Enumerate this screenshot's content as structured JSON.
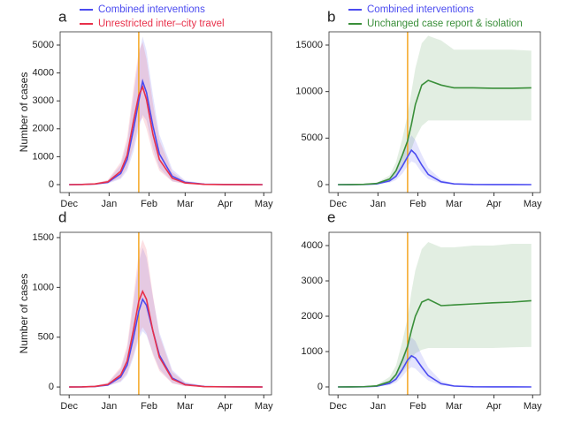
{
  "chart_data": [
    {
      "type": "line",
      "panel_label": "a",
      "ylabel": "Number of cases",
      "legend": true,
      "vline": 54,
      "vline_color": "#f5a623",
      "x": [
        0,
        10,
        20,
        30,
        40,
        45,
        50,
        54,
        57,
        60,
        65,
        70,
        80,
        90,
        105,
        120,
        135,
        150
      ],
      "xlim": [
        -7,
        157
      ],
      "xticks": [
        {
          "value": 0,
          "label": "Dec"
        },
        {
          "value": 31,
          "label": "Jan"
        },
        {
          "value": 62,
          "label": "Feb"
        },
        {
          "value": 90,
          "label": "Mar"
        },
        {
          "value": 121,
          "label": "Apr"
        },
        {
          "value": 151,
          "label": "May"
        }
      ],
      "ylim": [
        -285,
        5475
      ],
      "yticks": [
        0,
        1000,
        2000,
        3000,
        4000,
        5000
      ],
      "series": [
        {
          "name": "Combined interventions",
          "color": "#4b4bf0",
          "values": [
            0,
            5,
            20,
            80,
            400,
            900,
            2000,
            3000,
            3700,
            3300,
            2100,
            1100,
            300,
            80,
            15,
            5,
            2,
            0
          ],
          "lower": [
            0,
            2,
            10,
            40,
            200,
            500,
            1200,
            2000,
            2500,
            2300,
            1300,
            600,
            120,
            30,
            5,
            1,
            0,
            0
          ],
          "upper": [
            10,
            15,
            40,
            150,
            700,
            1500,
            3200,
            4600,
            5300,
            4800,
            3200,
            1800,
            550,
            150,
            35,
            12,
            5,
            3
          ]
        },
        {
          "name": "Unrestricted inter–city travel",
          "color": "#e8304a",
          "values": [
            0,
            5,
            25,
            100,
            480,
            1050,
            2300,
            3200,
            3500,
            3050,
            1800,
            900,
            230,
            60,
            10,
            3,
            1,
            0
          ],
          "lower": [
            0,
            2,
            12,
            50,
            250,
            600,
            1400,
            2200,
            2400,
            2000,
            1100,
            500,
            110,
            25,
            4,
            1,
            0,
            0
          ],
          "upper": [
            10,
            15,
            45,
            170,
            800,
            1700,
            3500,
            4800,
            5100,
            4500,
            2900,
            1600,
            450,
            120,
            25,
            8,
            3,
            2
          ]
        }
      ]
    },
    {
      "type": "line",
      "panel_label": "b",
      "legend": true,
      "vline": 54,
      "vline_color": "#f5a623",
      "x": [
        0,
        10,
        20,
        30,
        40,
        45,
        50,
        54,
        57,
        60,
        65,
        70,
        80,
        90,
        105,
        120,
        135,
        150
      ],
      "xlim": [
        -7,
        157
      ],
      "xticks": [
        {
          "value": 0,
          "label": "Dec"
        },
        {
          "value": 31,
          "label": "Jan"
        },
        {
          "value": 62,
          "label": "Feb"
        },
        {
          "value": 90,
          "label": "Mar"
        },
        {
          "value": 121,
          "label": "Apr"
        },
        {
          "value": 151,
          "label": "May"
        }
      ],
      "ylim": [
        -855,
        16425
      ],
      "yticks": [
        0,
        5000,
        10000,
        15000
      ],
      "series": [
        {
          "name": "Combined interventions",
          "color": "#4b4bf0",
          "values": [
            0,
            5,
            20,
            80,
            400,
            900,
            2000,
            3000,
            3700,
            3300,
            2100,
            1100,
            300,
            80,
            15,
            5,
            2,
            0
          ],
          "lower": [
            0,
            2,
            10,
            40,
            200,
            500,
            1200,
            2000,
            2500,
            2300,
            1300,
            600,
            120,
            30,
            5,
            1,
            0,
            0
          ],
          "upper": [
            10,
            15,
            40,
            150,
            700,
            1500,
            3200,
            4600,
            5300,
            4800,
            3200,
            1800,
            550,
            150,
            35,
            12,
            5,
            3
          ]
        },
        {
          "name": "Unchanged case report & isolation",
          "color": "#3a8f3a",
          "values": [
            0,
            5,
            25,
            120,
            600,
            1500,
            3200,
            4700,
            6500,
            8600,
            10700,
            11200,
            10700,
            10400,
            10400,
            10350,
            10350,
            10400
          ],
          "lower": [
            0,
            2,
            12,
            60,
            300,
            800,
            1800,
            2800,
            3800,
            5000,
            6300,
            6900,
            6900,
            6900,
            6900,
            6900,
            6900,
            6900
          ],
          "upper": [
            10,
            15,
            50,
            200,
            1000,
            2400,
            5000,
            7500,
            10000,
            12500,
            15200,
            16000,
            15500,
            14500,
            14500,
            14500,
            14500,
            14400
          ]
        }
      ]
    },
    {
      "type": "line",
      "panel_label": "d",
      "ylabel": "Number of cases",
      "legend": false,
      "vline": 54,
      "vline_color": "#f5a623",
      "x": [
        0,
        10,
        20,
        30,
        40,
        45,
        50,
        54,
        57,
        60,
        65,
        70,
        80,
        90,
        105,
        120,
        135,
        150
      ],
      "xlim": [
        -7,
        157
      ],
      "xticks": [
        {
          "value": 0,
          "label": "Dec"
        },
        {
          "value": 31,
          "label": "Jan"
        },
        {
          "value": 62,
          "label": "Feb"
        },
        {
          "value": 90,
          "label": "Mar"
        },
        {
          "value": 121,
          "label": "Apr"
        },
        {
          "value": 151,
          "label": "May"
        }
      ],
      "ylim": [
        -79,
        1553
      ],
      "yticks": [
        0,
        500,
        1000,
        1500
      ],
      "series": [
        {
          "color": "#4b4bf0",
          "values": [
            0,
            1,
            5,
            20,
            100,
            220,
            500,
            760,
            880,
            820,
            560,
            320,
            90,
            25,
            5,
            2,
            1,
            0
          ],
          "lower": [
            0,
            0,
            2,
            10,
            50,
            120,
            300,
            480,
            560,
            520,
            340,
            180,
            40,
            10,
            2,
            1,
            0,
            0
          ],
          "upper": [
            3,
            4,
            12,
            40,
            180,
            380,
            850,
            1250,
            1400,
            1300,
            900,
            550,
            170,
            50,
            12,
            4,
            2,
            1
          ]
        },
        {
          "color": "#e8304a",
          "values": [
            0,
            1,
            6,
            25,
            120,
            260,
            580,
            860,
            960,
            880,
            560,
            300,
            80,
            22,
            4,
            2,
            1,
            0
          ],
          "lower": [
            0,
            0,
            3,
            12,
            60,
            140,
            330,
            520,
            600,
            540,
            320,
            160,
            35,
            8,
            2,
            1,
            0,
            0
          ],
          "upper": [
            3,
            4,
            14,
            45,
            200,
            420,
            920,
            1350,
            1480,
            1380,
            920,
            520,
            150,
            45,
            10,
            4,
            2,
            1
          ]
        }
      ]
    },
    {
      "type": "line",
      "panel_label": "e",
      "legend": false,
      "vline": 54,
      "vline_color": "#f5a623",
      "x": [
        0,
        10,
        20,
        30,
        40,
        45,
        50,
        54,
        57,
        60,
        65,
        70,
        80,
        90,
        105,
        120,
        135,
        150
      ],
      "xlim": [
        -7,
        157
      ],
      "xticks": [
        {
          "value": 0,
          "label": "Dec"
        },
        {
          "value": 31,
          "label": "Jan"
        },
        {
          "value": 62,
          "label": "Feb"
        },
        {
          "value": 90,
          "label": "Mar"
        },
        {
          "value": 121,
          "label": "Apr"
        },
        {
          "value": 151,
          "label": "May"
        }
      ],
      "ylim": [
        -225,
        4375
      ],
      "yticks": [
        0,
        1000,
        2000,
        3000,
        4000
      ],
      "series": [
        {
          "color": "#4b4bf0",
          "values": [
            0,
            1,
            5,
            20,
            100,
            220,
            500,
            760,
            880,
            820,
            560,
            320,
            90,
            25,
            5,
            2,
            1,
            0
          ],
          "lower": [
            0,
            0,
            2,
            10,
            50,
            120,
            300,
            480,
            560,
            520,
            340,
            180,
            40,
            10,
            2,
            1,
            0,
            0
          ],
          "upper": [
            3,
            4,
            12,
            40,
            180,
            380,
            850,
            1250,
            1400,
            1300,
            900,
            550,
            170,
            50,
            12,
            4,
            2,
            1
          ]
        },
        {
          "color": "#3a8f3a",
          "values": [
            0,
            1,
            6,
            30,
            150,
            350,
            760,
            1150,
            1600,
            2000,
            2400,
            2480,
            2300,
            2320,
            2350,
            2380,
            2400,
            2440
          ],
          "lower": [
            0,
            0,
            3,
            15,
            75,
            180,
            420,
            620,
            800,
            950,
            1050,
            1100,
            1100,
            1100,
            1100,
            1100,
            1120,
            1130
          ],
          "upper": [
            3,
            4,
            15,
            55,
            280,
            600,
            1300,
            1950,
            2700,
            3300,
            3900,
            4100,
            3950,
            3950,
            4000,
            4000,
            4050,
            4050
          ]
        }
      ]
    }
  ]
}
